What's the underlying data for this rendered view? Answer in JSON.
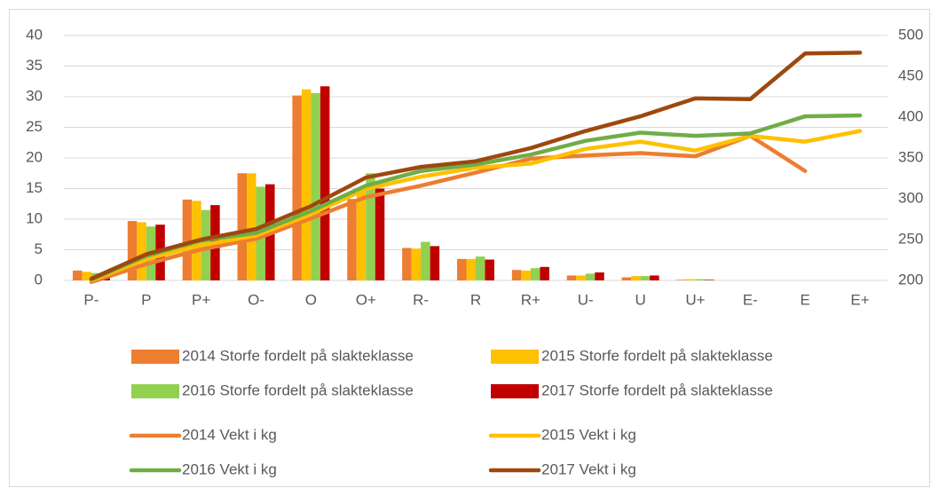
{
  "chart_data": {
    "type": "combo",
    "categories": [
      "P-",
      "P",
      "P+",
      "O-",
      "O",
      "O+",
      "R-",
      "R",
      "R+",
      "U-",
      "U",
      "U+",
      "E-",
      "E",
      "E+"
    ],
    "series": [
      {
        "name": "2014 Storfe fordelt på slakteklasse",
        "type": "bar",
        "color": "#ed7d31",
        "values": [
          1.6,
          9.7,
          13.2,
          17.5,
          30.2,
          13.3,
          5.3,
          3.5,
          1.7,
          0.8,
          0.5,
          0.1,
          0,
          0,
          0
        ]
      },
      {
        "name": "2015 Storfe fordelt på slakteklasse",
        "type": "bar",
        "color": "#ffc000",
        "values": [
          1.4,
          9.5,
          13.0,
          17.5,
          31.2,
          15.0,
          5.2,
          3.5,
          1.6,
          0.8,
          0.7,
          0.2,
          0,
          0,
          0
        ]
      },
      {
        "name": "2016 Storfe fordelt på slakteklasse",
        "type": "bar",
        "color": "#92d050",
        "values": [
          1.2,
          8.8,
          11.5,
          15.3,
          30.6,
          17.5,
          6.3,
          3.9,
          2.0,
          1.1,
          0.7,
          0.2,
          0,
          0,
          0
        ]
      },
      {
        "name": "2017 Storfe fordelt på slakteklasse",
        "type": "bar",
        "color": "#c00000",
        "values": [
          1.0,
          9.1,
          12.3,
          15.7,
          31.7,
          15.0,
          5.6,
          3.4,
          2.2,
          1.3,
          0.8,
          0.1,
          0,
          0,
          0
        ]
      },
      {
        "name": "2014 Vekt i kg",
        "type": "line",
        "axis": "y2",
        "color": "#ed7d31",
        "values": [
          198,
          220,
          238,
          251,
          276,
          302,
          316,
          332,
          349,
          353,
          356,
          352,
          377,
          334,
          null
        ]
      },
      {
        "name": "2015 Vekt i kg",
        "type": "line",
        "axis": "y2",
        "color": "#ffc000",
        "values": [
          200,
          226,
          243,
          255,
          281,
          312,
          327,
          338,
          343,
          361,
          370,
          359,
          377,
          370,
          383
        ]
      },
      {
        "name": "2016 Vekt i kg",
        "type": "line",
        "axis": "y2",
        "color": "#70ad47",
        "values": [
          201,
          230,
          249,
          258,
          285,
          316,
          334,
          342,
          354,
          371,
          381,
          377,
          380,
          401,
          402
        ]
      },
      {
        "name": "2017 Vekt i kg",
        "type": "line",
        "axis": "y2",
        "color": "#9e480e",
        "values": [
          202,
          232,
          250,
          263,
          291,
          326,
          339,
          346,
          362,
          383,
          401,
          423,
          422,
          478,
          479
        ]
      }
    ],
    "ylim": [
      0,
      40
    ],
    "yticks": [
      0,
      5,
      10,
      15,
      20,
      25,
      30,
      35,
      40
    ],
    "y2lim": [
      200,
      500
    ],
    "y2ticks": [
      200,
      250,
      300,
      350,
      400,
      450,
      500
    ],
    "grid": true,
    "legend": "bottom"
  }
}
